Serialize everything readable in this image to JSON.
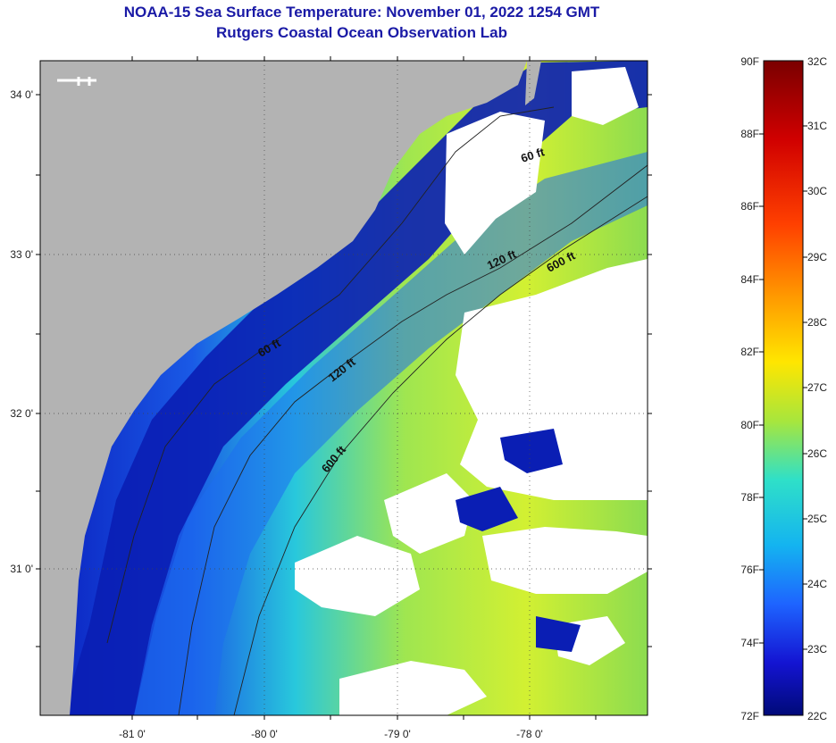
{
  "title": "NOAA-15 Sea Surface Temperature:  November 01, 2022 1254 GMT",
  "subtitle": "Rutgers Coastal Ocean Observation Lab",
  "map": {
    "lat_labels": [
      "34 0'",
      "33 0'",
      "32 0'",
      "31 0'"
    ],
    "lon_labels": [
      "-81 0'",
      "-80 0'",
      "-79 0'",
      "-78 0'"
    ],
    "contour_labels": [
      "60 ft",
      "120 ft",
      "600 ft",
      "60 ft",
      "120 ft",
      "600 ft"
    ]
  },
  "colorbar": {
    "fahrenheit": [
      "90F",
      "88F",
      "86F",
      "84F",
      "82F",
      "80F",
      "78F",
      "76F",
      "74F",
      "72F"
    ],
    "celsius": [
      "32C",
      "31C",
      "30C",
      "29C",
      "28C",
      "27C",
      "26C",
      "25C",
      "24C",
      "23C",
      "22C"
    ],
    "colors": [
      "#7a0000",
      "#d00000",
      "#ff4000",
      "#ff9900",
      "#ffe600",
      "#a8e63c",
      "#2fe0c8",
      "#14b4f0",
      "#1e64ff",
      "#1414d2",
      "#000a78"
    ]
  },
  "colors": {
    "land": "#b3b3b3",
    "cloud": "#ffffff",
    "title": "#1a1aa6"
  }
}
